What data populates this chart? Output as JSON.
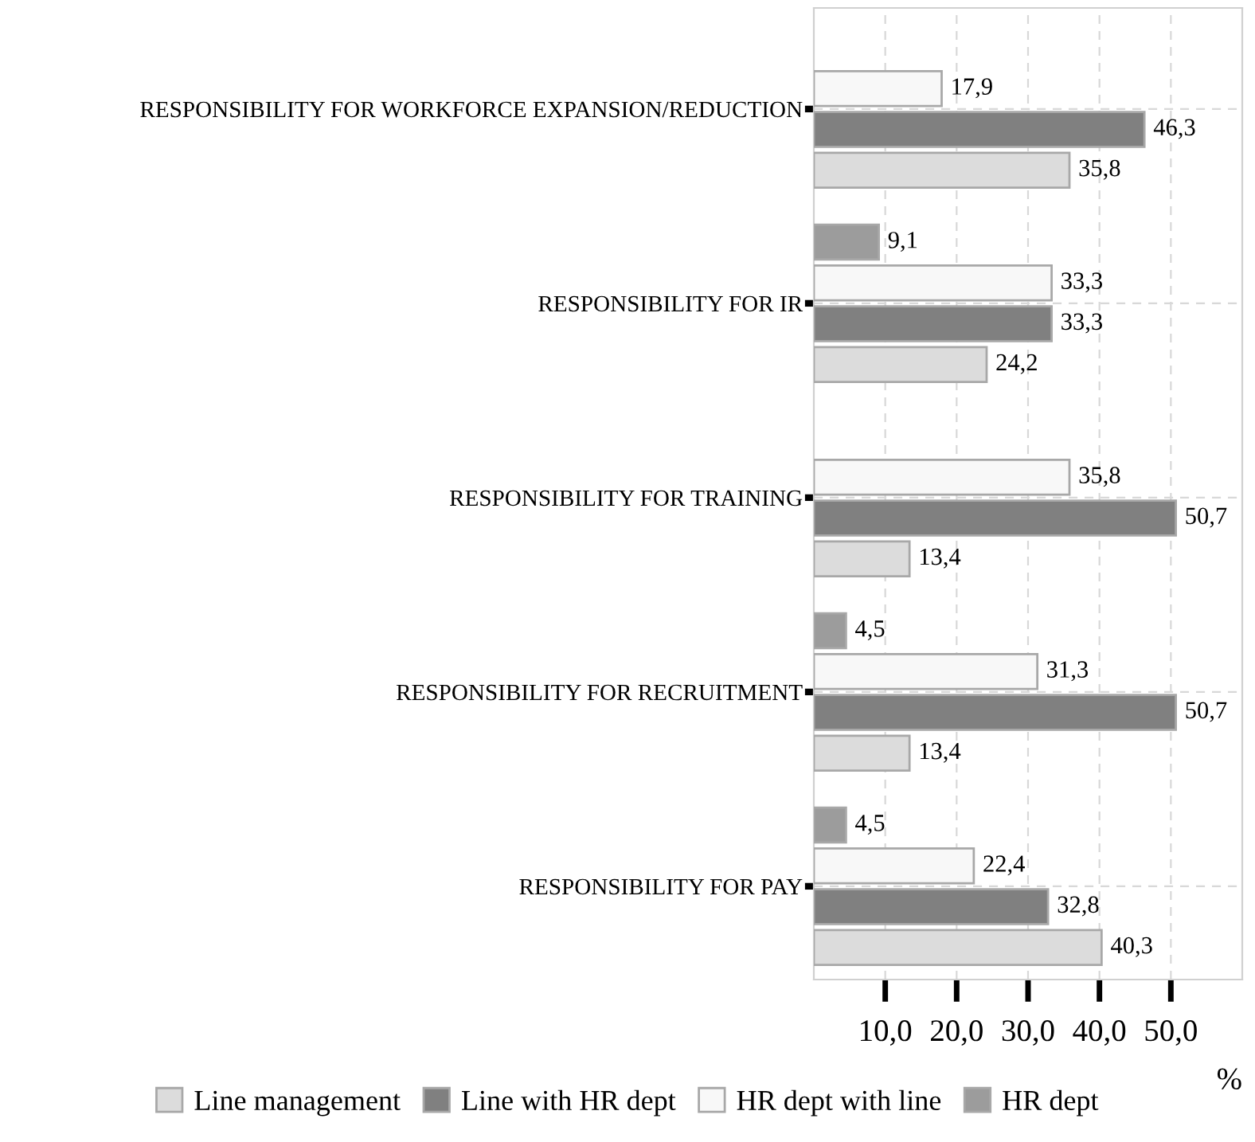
{
  "chart_data": {
    "type": "bar",
    "orientation": "horizontal",
    "categories": [
      "RESPONSIBILITY FOR WORKFORCE EXPANSION/REDUCTION",
      "RESPONSIBILITY FOR IR",
      "RESPONSIBILITY FOR TRAINING",
      "RESPONSIBILITY FOR RECRUITMENT",
      "RESPONSIBILITY FOR PAY"
    ],
    "series": [
      {
        "name": "Line management",
        "color": "#dcdcdc",
        "values": [
          35.8,
          24.2,
          13.4,
          13.4,
          40.3
        ],
        "value_labels": [
          "35,8",
          "24,2",
          "13,4",
          "13,4",
          "40,3"
        ]
      },
      {
        "name": "Line with HR dept",
        "color": "#808080",
        "values": [
          46.3,
          33.3,
          50.7,
          50.7,
          32.8
        ],
        "value_labels": [
          "46,3",
          "33,3",
          "50,7",
          "50,7",
          "32,8"
        ]
      },
      {
        "name": "HR dept with line",
        "color": "#f8f8f8",
        "values": [
          17.9,
          33.3,
          35.8,
          31.3,
          22.4
        ],
        "value_labels": [
          "17,9",
          "33,3",
          "35,8",
          "31,3",
          "22,4"
        ]
      },
      {
        "name": "HR dept",
        "color": "#9c9c9c",
        "values": [
          null,
          9.1,
          null,
          4.5,
          4.5
        ],
        "value_labels": [
          null,
          "9,1",
          null,
          "4,5",
          "4,5"
        ]
      }
    ],
    "xlim": [
      0,
      60
    ],
    "xticks": [
      {
        "value": 10,
        "label": "10,0"
      },
      {
        "value": 20,
        "label": "20,0"
      },
      {
        "value": 30,
        "label": "30,0"
      },
      {
        "value": 40,
        "label": "40,0"
      },
      {
        "value": 50,
        "label": "50,0"
      }
    ],
    "xlabel": "%",
    "grid": true,
    "legend": "bottom"
  }
}
